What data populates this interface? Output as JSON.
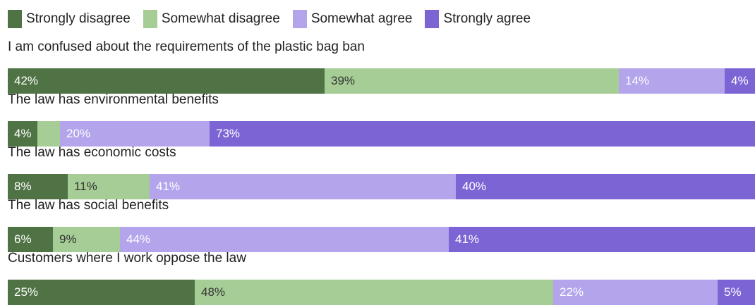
{
  "chart_data": {
    "type": "bar",
    "orientation": "horizontal",
    "stacked": true,
    "normalized": true,
    "legend_position": "top-left",
    "series": [
      {
        "name": "Strongly disagree",
        "color": "#4f7344",
        "label_color": "#ffffff"
      },
      {
        "name": "Somewhat disagree",
        "color": "#a6cd95",
        "label_color": "#333333"
      },
      {
        "name": "Somewhat agree",
        "color": "#b3a4ec",
        "label_color": "#ffffff"
      },
      {
        "name": "Strongly agree",
        "color": "#7c64d5",
        "label_color": "#ffffff"
      }
    ],
    "rows": [
      {
        "label": "I am confused about the requirements of the plastic bag ban",
        "values": [
          42,
          39,
          14,
          4
        ],
        "value_labels": [
          "42%",
          "39%",
          "14%",
          "4%"
        ]
      },
      {
        "label": "The law has environmental benefits",
        "values": [
          4,
          3,
          20,
          73
        ],
        "value_labels": [
          "4%",
          "",
          "20%",
          "73%"
        ]
      },
      {
        "label": "The law has economic costs",
        "values": [
          8,
          11,
          41,
          40
        ],
        "value_labels": [
          "8%",
          "11%",
          "41%",
          "40%"
        ]
      },
      {
        "label": "The law has social benefits",
        "values": [
          6,
          9,
          44,
          41
        ],
        "value_labels": [
          "6%",
          "9%",
          "44%",
          "41%"
        ]
      },
      {
        "label": "Customers where I work oppose the law",
        "values": [
          25,
          48,
          22,
          5
        ],
        "value_labels": [
          "25%",
          "48%",
          "22%",
          "5%"
        ]
      }
    ]
  }
}
